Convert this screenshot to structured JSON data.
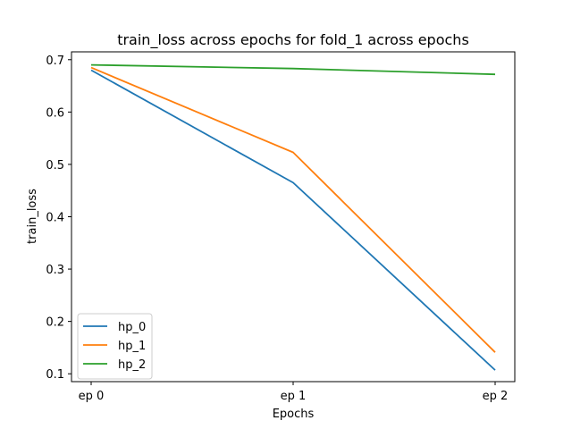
{
  "chart_data": {
    "type": "line",
    "title": "train_loss across epochs for fold_1 across epochs",
    "xlabel": "Epochs",
    "ylabel": "train_loss",
    "categories": [
      "ep 0",
      "ep 1",
      "ep 2"
    ],
    "ylim": [
      0.085,
      0.715
    ],
    "yticks": [
      0.1,
      0.2,
      0.3,
      0.4,
      0.5,
      0.6,
      0.7
    ],
    "grid": false,
    "legend_position": "lower-left",
    "series": [
      {
        "name": "hp_0",
        "color": "#1f77b4",
        "values": [
          0.68,
          0.465,
          0.107
        ]
      },
      {
        "name": "hp_1",
        "color": "#ff7f0e",
        "values": [
          0.685,
          0.523,
          0.141
        ]
      },
      {
        "name": "hp_2",
        "color": "#2ca02c",
        "values": [
          0.69,
          0.683,
          0.672
        ]
      }
    ]
  }
}
